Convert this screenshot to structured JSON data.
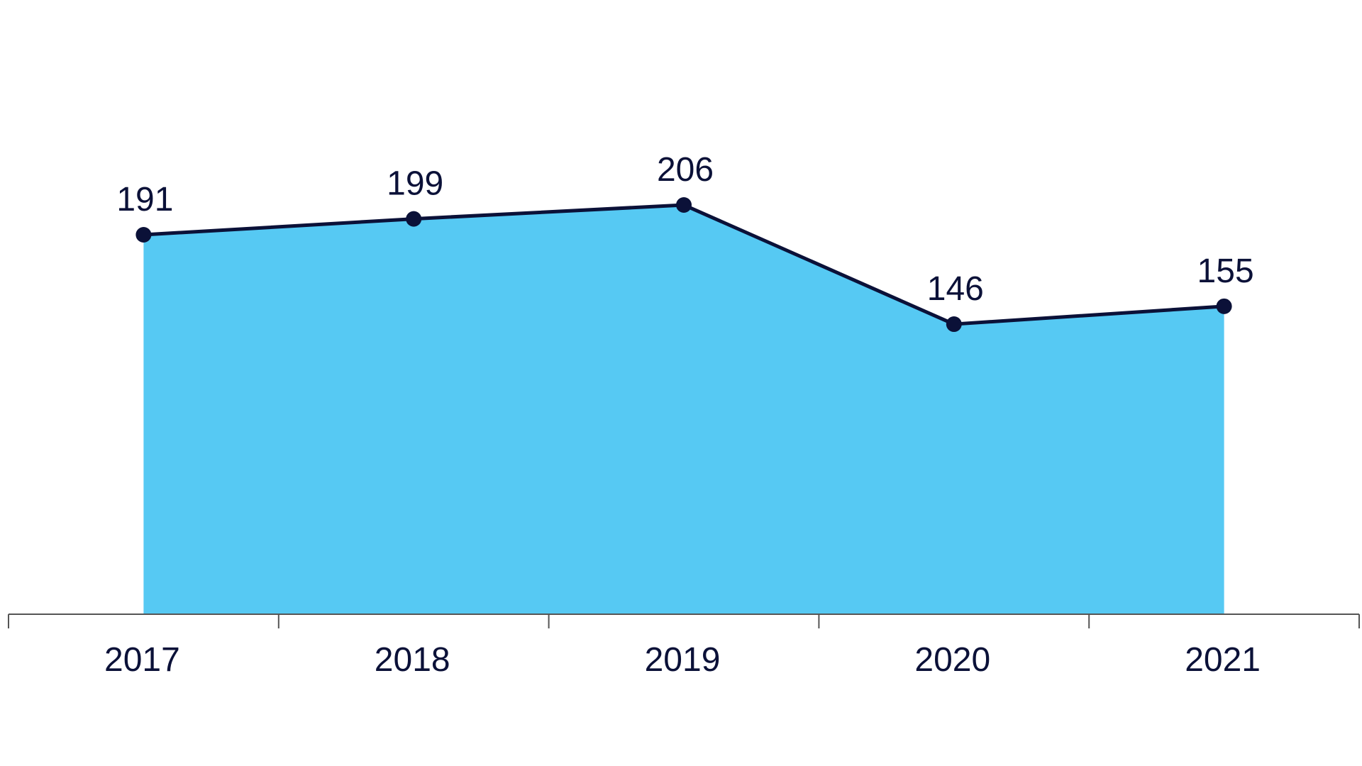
{
  "chart_data": {
    "type": "area",
    "categories": [
      "2017",
      "2018",
      "2019",
      "2020",
      "2021"
    ],
    "series": [
      {
        "values": [
          191,
          199,
          206,
          146,
          155
        ]
      }
    ],
    "data_labels": [
      "191",
      "199",
      "206",
      "146",
      "155"
    ],
    "title": "",
    "xlabel": "",
    "ylabel": "",
    "ylim": [
      0,
      206
    ],
    "grid": false,
    "legend": "none",
    "colors": {
      "area_fill": "#56c9f3",
      "line": "#0b1138",
      "marker": "#0b1138",
      "axis": "#555555",
      "text": "#0b1138"
    }
  }
}
